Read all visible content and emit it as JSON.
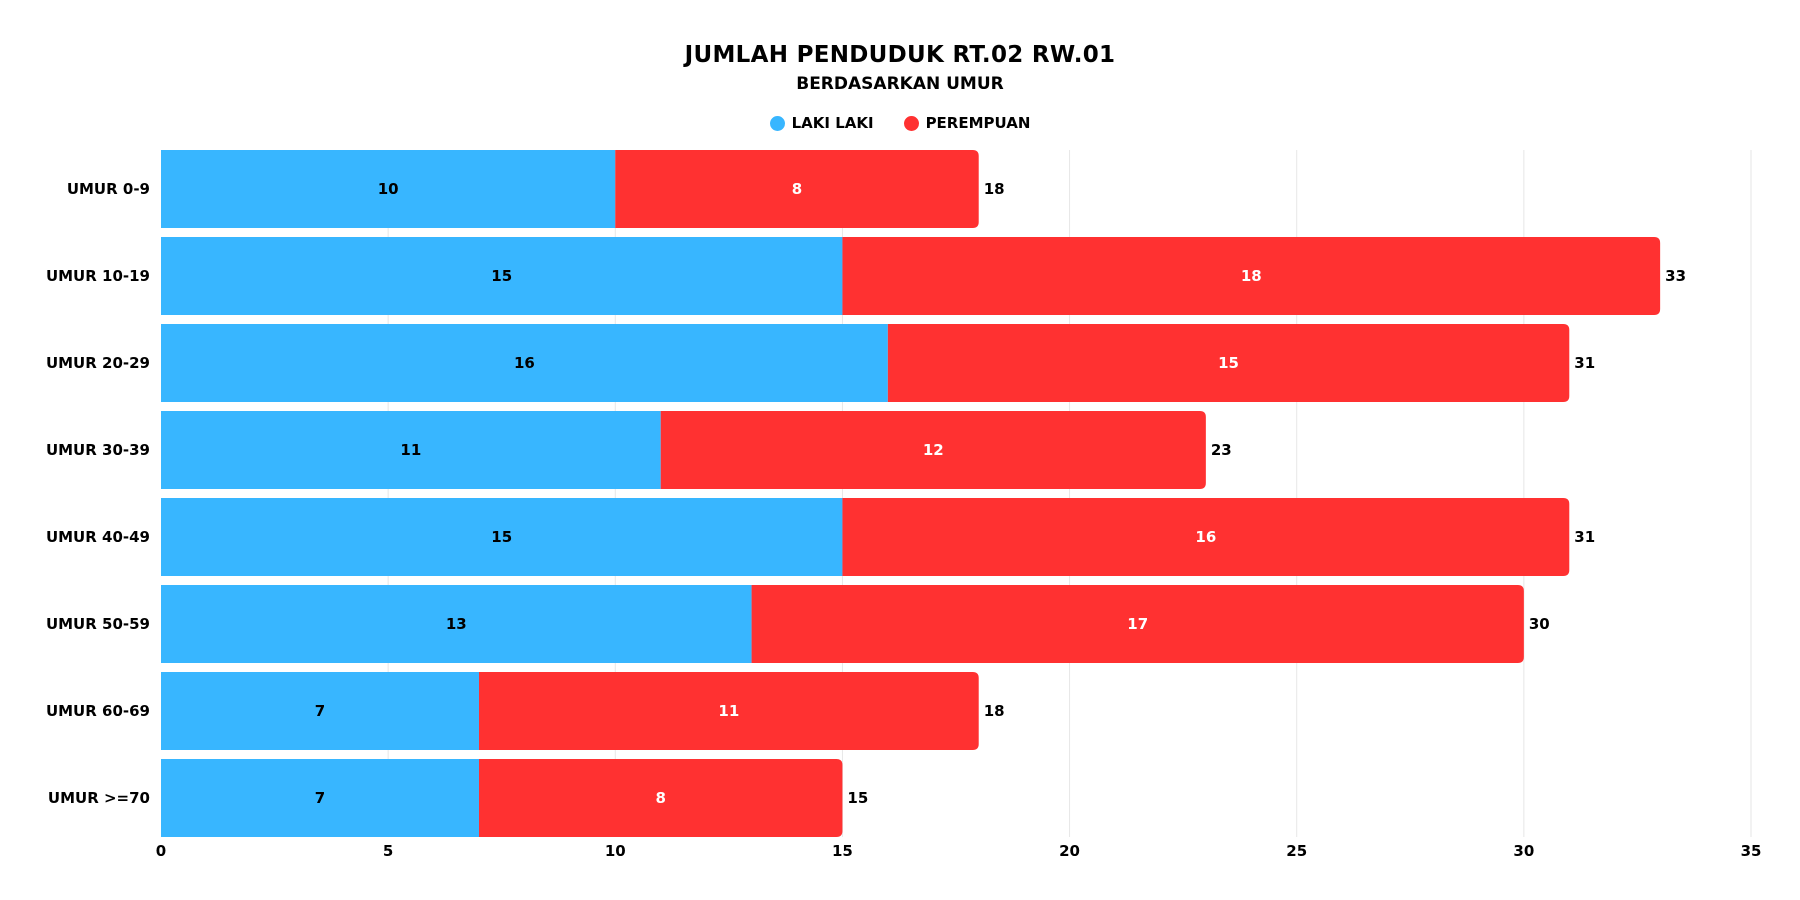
{
  "chart_data": {
    "type": "bar",
    "orientation": "horizontal",
    "stacked": true,
    "title": "JUMLAH PENDUDUK RT.02 RW.01",
    "subtitle": "BERDASARKAN UMUR",
    "categories": [
      "UMUR 0-9",
      "UMUR 10-19",
      "UMUR 20-29",
      "UMUR 30-39",
      "UMUR 40-49",
      "UMUR 50-59",
      "UMUR 60-69",
      "UMUR >=70"
    ],
    "series": [
      {
        "name": "LAKI LAKI",
        "color": "#38B6FF",
        "values": [
          10,
          15,
          16,
          11,
          15,
          13,
          7,
          7
        ]
      },
      {
        "name": "PEREMPUAN",
        "color": "#FF3131",
        "values": [
          8,
          18,
          15,
          12,
          16,
          17,
          11,
          8
        ]
      }
    ],
    "totals": [
      18,
      33,
      31,
      23,
      31,
      30,
      18,
      15
    ],
    "xlim": [
      0,
      35
    ],
    "xticks": [
      0,
      5,
      10,
      15,
      20,
      25,
      30,
      35
    ],
    "grid": true,
    "legend": "top-center"
  }
}
